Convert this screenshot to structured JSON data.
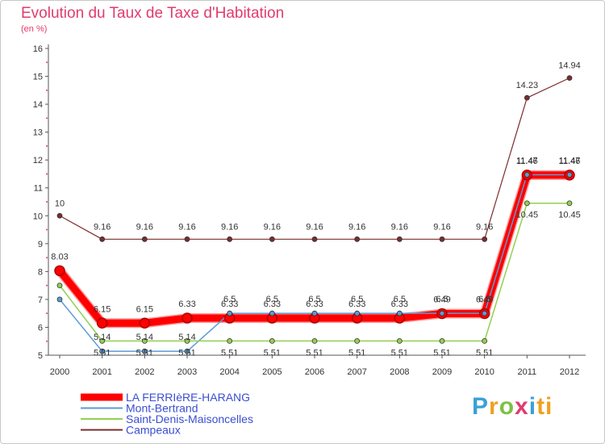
{
  "header": {
    "title": "Evolution du Taux de Taxe d'Habitation",
    "subtitle": "(en %)"
  },
  "logo": {
    "text": "Proxiti"
  },
  "chart_data": {
    "type": "line",
    "title": "Evolution du Taux de Taxe d'Habitation",
    "ylabel": "(en %)",
    "xlabel": "",
    "ylim": [
      5,
      16
    ],
    "yticks": [
      5,
      6,
      7,
      8,
      9,
      10,
      11,
      12,
      13,
      14,
      15,
      16
    ],
    "categories": [
      "2000",
      "2001",
      "2002",
      "2003",
      "2004",
      "2005",
      "2006",
      "2007",
      "2008",
      "2009",
      "2010",
      "2011",
      "2012"
    ],
    "grid": false,
    "legend": "bottom-left",
    "series": [
      {
        "name": "LA FERRIèRE-HARANG",
        "color": "#ff0000",
        "width": 9,
        "labels": true,
        "values": [
          8.03,
          6.15,
          6.15,
          6.33,
          6.33,
          6.33,
          6.33,
          6.33,
          6.33,
          6.49,
          6.49,
          11.46,
          11.46
        ]
      },
      {
        "name": "Mont-Bertrand",
        "color": "#5b9bd5",
        "width": 1.5,
        "labels": true,
        "values": [
          7.0,
          5.14,
          5.14,
          5.14,
          6.5,
          6.5,
          6.5,
          6.5,
          6.5,
          6.5,
          6.5,
          11.47,
          11.47
        ]
      },
      {
        "name": "Saint-Denis-Maisoncelles",
        "color": "#92d050",
        "width": 1.5,
        "labels": true,
        "values": [
          7.5,
          5.51,
          5.51,
          5.51,
          5.51,
          5.51,
          5.51,
          5.51,
          5.51,
          5.51,
          5.51,
          10.45,
          10.45
        ]
      },
      {
        "name": "Campeaux",
        "color": "#7b2c2c",
        "width": 1.2,
        "labels": true,
        "values": [
          10,
          9.16,
          9.16,
          9.16,
          9.16,
          9.16,
          9.16,
          9.16,
          9.16,
          9.16,
          9.16,
          14.23,
          14.94
        ]
      }
    ],
    "point_labels": [
      {
        "series": 0,
        "text": [
          "8.03",
          "6.15",
          "6.15",
          "6.33",
          "6.33",
          "6.33",
          "6.33",
          "6.33",
          "6.33",
          "6.49",
          "6.49",
          "11.46",
          "11.46"
        ]
      },
      {
        "series": 1,
        "text": [
          "",
          "5.14",
          "5.14",
          "5.14",
          "6.5",
          "6.5",
          "6.5",
          "6.5",
          "6.5",
          "6.5",
          "6.5",
          "11.47",
          "11.47"
        ]
      },
      {
        "series": 2,
        "text": [
          "",
          "5.51",
          "5.51",
          "5.51",
          "5.51",
          "5.51",
          "5.51",
          "5.51",
          "5.51",
          "5.51",
          "5.51",
          "10.45",
          "10.45"
        ]
      },
      {
        "series": 3,
        "text": [
          "10",
          "9.16",
          "9.16",
          "9.16",
          "9.16",
          "9.16",
          "9.16",
          "9.16",
          "9.16",
          "9.16",
          "9.16",
          "14.23",
          "14.94"
        ]
      }
    ]
  }
}
